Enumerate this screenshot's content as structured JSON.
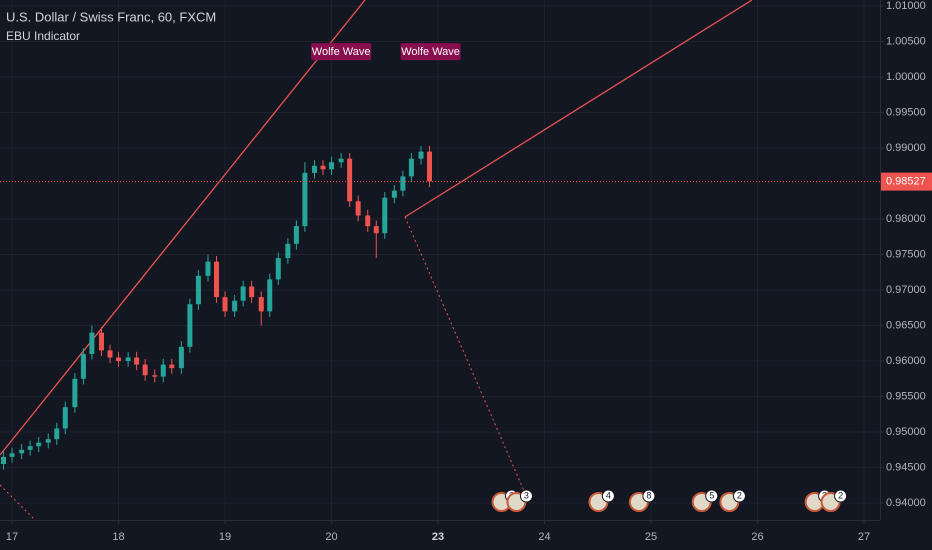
{
  "chart_data": {
    "type": "candlestick",
    "title": "U.S. Dollar / Swiss Franc, 60, FXCM",
    "indicator": "EBU Indicator",
    "annotations": [
      {
        "text": "Wolfe Wave",
        "x": 3.09,
        "y": 1.0035
      },
      {
        "text": "Wolfe Wave",
        "x": 3.93,
        "y": 1.0035
      }
    ],
    "up_color": "#26a69a",
    "down_color": "#ef5350",
    "grid": true,
    "x": [
      -0.08,
      0.0,
      0.09,
      0.17,
      0.25,
      0.34,
      0.42,
      0.5,
      0.59,
      0.67,
      0.75,
      0.84,
      0.92,
      1.0,
      1.09,
      1.17,
      1.25,
      1.34,
      1.42,
      1.5,
      1.59,
      1.67,
      1.75,
      1.84,
      1.92,
      2.0,
      2.09,
      2.17,
      2.25,
      2.34,
      2.42,
      2.5,
      2.59,
      2.67,
      2.75,
      2.84,
      2.92,
      3.0,
      3.09,
      3.17,
      3.25,
      3.34,
      3.42,
      3.5,
      3.59,
      3.67,
      3.75,
      3.84,
      3.92
    ],
    "open": [
      0.9455,
      0.9465,
      0.947,
      0.9475,
      0.948,
      0.9485,
      0.949,
      0.9505,
      0.9535,
      0.9575,
      0.961,
      0.964,
      0.9615,
      0.9605,
      0.96,
      0.9605,
      0.9595,
      0.958,
      0.9578,
      0.9595,
      0.959,
      0.962,
      0.968,
      0.972,
      0.974,
      0.969,
      0.967,
      0.9685,
      0.9705,
      0.969,
      0.967,
      0.9715,
      0.9745,
      0.9765,
      0.979,
      0.9865,
      0.9875,
      0.987,
      0.988,
      0.9885,
      0.9825,
      0.9805,
      0.979,
      0.978,
      0.983,
      0.984,
      0.986,
      0.9885,
      0.9895
    ],
    "high": [
      0.9473,
      0.9478,
      0.9483,
      0.9488,
      0.9493,
      0.9498,
      0.9513,
      0.9543,
      0.9583,
      0.9618,
      0.965,
      0.9648,
      0.9623,
      0.9613,
      0.9613,
      0.9613,
      0.9603,
      0.9588,
      0.9603,
      0.9603,
      0.9628,
      0.9688,
      0.9728,
      0.975,
      0.9748,
      0.9698,
      0.9693,
      0.9713,
      0.9713,
      0.9698,
      0.9723,
      0.9753,
      0.9773,
      0.9798,
      0.988,
      0.9883,
      0.9883,
      0.9888,
      0.9893,
      0.9893,
      0.9833,
      0.9813,
      0.9798,
      0.9838,
      0.9848,
      0.9868,
      0.9893,
      0.9903,
      0.9903
    ],
    "low": [
      0.9447,
      0.9457,
      0.9462,
      0.9467,
      0.9472,
      0.9477,
      0.9482,
      0.9497,
      0.9527,
      0.9567,
      0.9602,
      0.9607,
      0.9597,
      0.9592,
      0.9592,
      0.9587,
      0.9572,
      0.957,
      0.957,
      0.9582,
      0.9582,
      0.9612,
      0.9672,
      0.9712,
      0.9682,
      0.9662,
      0.9662,
      0.9677,
      0.9682,
      0.965,
      0.9662,
      0.9707,
      0.9737,
      0.9757,
      0.9782,
      0.9857,
      0.9862,
      0.9862,
      0.9872,
      0.9817,
      0.9797,
      0.9782,
      0.9745,
      0.9772,
      0.9822,
      0.9832,
      0.9852,
      0.9877,
      0.9845
    ],
    "close": [
      0.9465,
      0.947,
      0.9475,
      0.948,
      0.9485,
      0.949,
      0.9505,
      0.9535,
      0.9575,
      0.961,
      0.964,
      0.9615,
      0.9605,
      0.96,
      0.9605,
      0.9595,
      0.958,
      0.9578,
      0.9595,
      0.959,
      0.962,
      0.968,
      0.972,
      0.974,
      0.969,
      0.967,
      0.9685,
      0.9705,
      0.969,
      0.967,
      0.9715,
      0.9745,
      0.9765,
      0.979,
      0.9865,
      0.9875,
      0.987,
      0.988,
      0.9885,
      0.9825,
      0.9805,
      0.979,
      0.978,
      0.983,
      0.984,
      0.986,
      0.9885,
      0.9895,
      0.9853
    ],
    "last_price": 0.98527,
    "events": [
      {
        "x": 4.69,
        "label": "3"
      },
      {
        "x": 4.83,
        "label": "3"
      },
      {
        "x": 5.6,
        "label": "4"
      },
      {
        "x": 5.98,
        "label": "8"
      },
      {
        "x": 6.57,
        "label": "5"
      },
      {
        "x": 6.83,
        "label": "2"
      },
      {
        "x": 7.63,
        "label": "3"
      },
      {
        "x": 7.78,
        "label": "2"
      }
    ],
    "xlim": [
      -0.113,
      8.15
    ],
    "ylim": [
      0.93761,
      1.01085
    ],
    "xticks": [
      {
        "value": 0,
        "label": "17"
      },
      {
        "value": 1,
        "label": "18"
      },
      {
        "value": 2,
        "label": "19"
      },
      {
        "value": 3,
        "label": "20"
      },
      {
        "value": 4,
        "label": "23"
      },
      {
        "value": 5,
        "label": "24"
      },
      {
        "value": 6,
        "label": "25"
      },
      {
        "value": 7,
        "label": "26"
      },
      {
        "value": 8,
        "label": "27"
      }
    ],
    "yticks": [
      {
        "value": 0.94,
        "label": "0.94000"
      },
      {
        "value": 0.945,
        "label": "0.94500"
      },
      {
        "value": 0.95,
        "label": "0.95000"
      },
      {
        "value": 0.955,
        "label": "0.95500"
      },
      {
        "value": 0.96,
        "label": "0.96000"
      },
      {
        "value": 0.965,
        "label": "0.96500"
      },
      {
        "value": 0.97,
        "label": "0.97000"
      },
      {
        "value": 0.975,
        "label": "0.97500"
      },
      {
        "value": 0.98,
        "label": "0.98000"
      },
      {
        "value": 0.99,
        "label": "0.99000"
      },
      {
        "value": 0.995,
        "label": "0.99500"
      },
      {
        "value": 1.0,
        "label": "1.00000"
      },
      {
        "value": 1.005,
        "label": "1.00500"
      },
      {
        "value": 1.01,
        "label": "1.01000"
      }
    ]
  }
}
